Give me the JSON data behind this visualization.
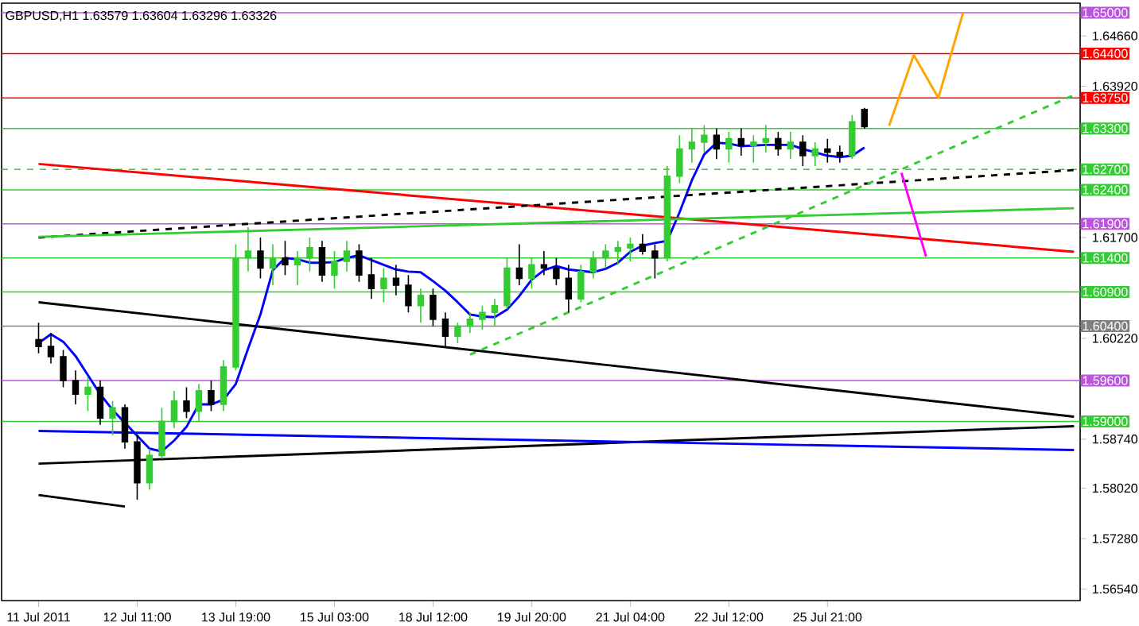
{
  "chart_data": {
    "type": "candlestick",
    "title": "GBPUSD,H1 1.63579 1.63604 1.63296 1.63326",
    "categories": [
      "11 Jul 2011",
      null,
      null,
      null,
      null,
      null,
      null,
      null,
      "12 Jul 11:00",
      null,
      null,
      null,
      null,
      null,
      null,
      null,
      "13 Jul 19:00",
      null,
      null,
      null,
      null,
      null,
      null,
      null,
      "15 Jul 03:00",
      null,
      null,
      null,
      null,
      null,
      null,
      null,
      "18 Jul 12:00",
      null,
      null,
      null,
      null,
      null,
      null,
      null,
      "19 Jul 20:00",
      null,
      null,
      null,
      null,
      null,
      null,
      null,
      "21 Jul 04:00",
      null,
      null,
      null,
      null,
      null,
      null,
      null,
      "22 Jul 12:00",
      null,
      null,
      null,
      null,
      null,
      null,
      null,
      "25 Jul 21:00",
      null,
      null,
      null,
      null,
      null,
      null,
      null,
      null,
      null,
      null,
      null,
      null,
      null,
      null,
      null,
      null,
      null,
      null,
      null,
      null
    ],
    "ohlc": [
      [
        1.602,
        1.6045,
        1.6,
        1.601
      ],
      [
        1.601,
        1.603,
        1.5985,
        1.5995
      ],
      [
        1.5995,
        1.6005,
        1.595,
        1.596
      ],
      [
        1.596,
        1.5975,
        1.5925,
        1.594
      ],
      [
        1.594,
        1.5965,
        1.5915,
        1.595
      ],
      [
        1.595,
        1.596,
        1.5895,
        1.5905
      ],
      [
        1.5905,
        1.593,
        1.588,
        1.592
      ],
      [
        1.592,
        1.5925,
        1.586,
        1.587
      ],
      [
        1.587,
        1.588,
        1.5785,
        1.581
      ],
      [
        1.581,
        1.586,
        1.58,
        1.585
      ],
      [
        1.585,
        1.592,
        1.5845,
        1.59
      ],
      [
        1.59,
        1.5945,
        1.589,
        1.593
      ],
      [
        1.593,
        1.595,
        1.5905,
        1.5915
      ],
      [
        1.5915,
        1.5955,
        1.59,
        1.5945
      ],
      [
        1.5945,
        1.596,
        1.5915,
        1.5925
      ],
      [
        1.5925,
        1.599,
        1.5915,
        1.598
      ],
      [
        1.598,
        1.616,
        1.5975,
        1.614
      ],
      [
        1.614,
        1.6185,
        1.612,
        1.615
      ],
      [
        1.615,
        1.617,
        1.611,
        1.6125
      ],
      [
        1.6125,
        1.616,
        1.61,
        1.614
      ],
      [
        1.614,
        1.6165,
        1.6115,
        1.613
      ],
      [
        1.613,
        1.615,
        1.61,
        1.614
      ],
      [
        1.614,
        1.617,
        1.612,
        1.6155
      ],
      [
        1.6155,
        1.6165,
        1.6105,
        1.6115
      ],
      [
        1.6115,
        1.615,
        1.6095,
        1.6135
      ],
      [
        1.6135,
        1.6165,
        1.612,
        1.615
      ],
      [
        1.615,
        1.616,
        1.6105,
        1.6115
      ],
      [
        1.6115,
        1.614,
        1.608,
        1.6095
      ],
      [
        1.6095,
        1.6125,
        1.6075,
        1.611
      ],
      [
        1.611,
        1.613,
        1.6085,
        1.61
      ],
      [
        1.61,
        1.6115,
        1.606,
        1.607
      ],
      [
        1.607,
        1.6095,
        1.6045,
        1.6085
      ],
      [
        1.6085,
        1.6095,
        1.604,
        1.605
      ],
      [
        1.605,
        1.606,
        1.601,
        1.6025
      ],
      [
        1.6025,
        1.6045,
        1.6015,
        1.604
      ],
      [
        1.604,
        1.606,
        1.603,
        1.605
      ],
      [
        1.605,
        1.607,
        1.6035,
        1.606
      ],
      [
        1.606,
        1.608,
        1.604,
        1.607
      ],
      [
        1.607,
        1.614,
        1.6065,
        1.6125
      ],
      [
        1.6125,
        1.616,
        1.61,
        1.611
      ],
      [
        1.611,
        1.614,
        1.6095,
        1.613
      ],
      [
        1.613,
        1.615,
        1.6115,
        1.6125
      ],
      [
        1.6125,
        1.614,
        1.61,
        1.611
      ],
      [
        1.611,
        1.613,
        1.606,
        1.608
      ],
      [
        1.608,
        1.613,
        1.6075,
        1.612
      ],
      [
        1.612,
        1.615,
        1.611,
        1.614
      ],
      [
        1.614,
        1.616,
        1.6125,
        1.615
      ],
      [
        1.615,
        1.6165,
        1.613,
        1.6155
      ],
      [
        1.6155,
        1.617,
        1.6135,
        1.616
      ],
      [
        1.616,
        1.6175,
        1.6145,
        1.615
      ],
      [
        1.615,
        1.616,
        1.611,
        1.614
      ],
      [
        1.614,
        1.6275,
        1.6135,
        1.626
      ],
      [
        1.626,
        1.632,
        1.625,
        1.63
      ],
      [
        1.63,
        1.633,
        1.628,
        1.631
      ],
      [
        1.631,
        1.6335,
        1.6295,
        1.632
      ],
      [
        1.632,
        1.633,
        1.6285,
        1.63
      ],
      [
        1.63,
        1.6325,
        1.628,
        1.6315
      ],
      [
        1.6315,
        1.633,
        1.629,
        1.6305
      ],
      [
        1.6305,
        1.632,
        1.628,
        1.631
      ],
      [
        1.631,
        1.6335,
        1.6295,
        1.6315
      ],
      [
        1.6315,
        1.6325,
        1.629,
        1.63
      ],
      [
        1.63,
        1.6325,
        1.6285,
        1.631
      ],
      [
        1.631,
        1.632,
        1.6275,
        1.629
      ],
      [
        1.629,
        1.631,
        1.6275,
        1.63
      ],
      [
        1.63,
        1.6315,
        1.628,
        1.6295
      ],
      [
        1.6295,
        1.6305,
        1.628,
        1.629
      ],
      [
        1.629,
        1.635,
        1.6285,
        1.634
      ],
      [
        1.63579,
        1.63604,
        1.63296,
        1.63326
      ],
      null,
      null,
      null,
      null,
      null,
      null,
      null,
      null,
      null,
      null,
      null,
      null,
      null,
      null,
      null,
      null,
      null
    ],
    "series": [
      {
        "type": "line",
        "color": "#0000ff",
        "values": [
          1.6015,
          1.6028,
          1.6017,
          1.5996,
          1.5968,
          1.594,
          1.5917,
          1.5898,
          1.5879,
          1.586,
          1.5856,
          1.5872,
          1.5892,
          1.5925,
          1.5925,
          1.5932,
          1.5955,
          1.6007,
          1.6057,
          1.6122,
          1.614,
          1.6138,
          1.6133,
          1.6133,
          1.6134,
          1.614,
          1.6144,
          1.6137,
          1.613,
          1.6123,
          1.612,
          1.6119,
          1.6106,
          1.6092,
          1.6075,
          1.6057,
          1.6054,
          1.6053,
          1.6064,
          1.6084,
          1.6108,
          1.6122,
          1.6128,
          1.6123,
          1.6121,
          1.6119,
          1.6124,
          1.6133,
          1.6149,
          1.6158,
          1.6162,
          1.6165,
          1.6207,
          1.6254,
          1.6292,
          1.6309,
          1.6308,
          1.6304,
          1.6305,
          1.6306,
          1.6306,
          1.6306,
          1.63,
          1.6295,
          1.629,
          1.6288,
          1.629,
          1.6302,
          null,
          null,
          null,
          null,
          null,
          null,
          null,
          null,
          null,
          null,
          null,
          null,
          null,
          null,
          null,
          null,
          null
        ]
      },
      {
        "type": "line",
        "color": "#ff0000",
        "values": [
          1.6278,
          null,
          null,
          null,
          null,
          null,
          null,
          null,
          null,
          null,
          null,
          null,
          null,
          null,
          null,
          null,
          null,
          null,
          null,
          null,
          null,
          null,
          null,
          null,
          null,
          null,
          null,
          null,
          null,
          null,
          null,
          null,
          null,
          null,
          null,
          null,
          null,
          null,
          null,
          null,
          null,
          null,
          null,
          null,
          null,
          null,
          null,
          null,
          null,
          null,
          null,
          null,
          null,
          null,
          null,
          null,
          null,
          null,
          null,
          null,
          null,
          null,
          null,
          null,
          null,
          null,
          null,
          null,
          null,
          null,
          null,
          null,
          null,
          null,
          null,
          null,
          null,
          null,
          null,
          null,
          null,
          null,
          null,
          null,
          1.6149
        ]
      },
      {
        "type": "line",
        "color": "#000000",
        "line_style": "dashed",
        "values": [
          1.617,
          null,
          null,
          null,
          null,
          null,
          null,
          null,
          null,
          null,
          null,
          null,
          null,
          null,
          null,
          null,
          null,
          null,
          null,
          null,
          null,
          null,
          null,
          null,
          null,
          null,
          null,
          null,
          null,
          null,
          null,
          null,
          null,
          null,
          null,
          null,
          null,
          null,
          null,
          null,
          null,
          null,
          null,
          null,
          null,
          null,
          null,
          null,
          null,
          null,
          null,
          null,
          null,
          null,
          null,
          null,
          null,
          null,
          null,
          null,
          null,
          null,
          null,
          null,
          null,
          null,
          null,
          null,
          null,
          null,
          null,
          null,
          null,
          null,
          null,
          null,
          null,
          null,
          null,
          null,
          null,
          null,
          null,
          null,
          1.6269
        ]
      },
      {
        "type": "line",
        "color": "#33cc33",
        "values": [
          1.6171,
          null,
          null,
          null,
          null,
          null,
          null,
          null,
          null,
          null,
          null,
          null,
          null,
          null,
          null,
          null,
          null,
          null,
          null,
          null,
          null,
          null,
          null,
          null,
          null,
          null,
          null,
          null,
          null,
          null,
          null,
          null,
          null,
          null,
          null,
          null,
          null,
          null,
          null,
          null,
          null,
          null,
          null,
          null,
          null,
          null,
          null,
          null,
          null,
          null,
          null,
          null,
          null,
          null,
          null,
          null,
          null,
          null,
          null,
          null,
          null,
          null,
          null,
          null,
          null,
          null,
          null,
          null,
          null,
          null,
          null,
          null,
          null,
          null,
          null,
          null,
          null,
          null,
          null,
          null,
          null,
          null,
          null,
          null,
          1.6213
        ]
      },
      {
        "type": "line",
        "color": "#33cc33",
        "line_style": "dashed",
        "values": [
          null,
          null,
          null,
          null,
          null,
          null,
          null,
          null,
          null,
          null,
          null,
          null,
          null,
          null,
          null,
          null,
          null,
          null,
          null,
          null,
          null,
          null,
          null,
          null,
          null,
          null,
          null,
          null,
          null,
          null,
          null,
          null,
          null,
          null,
          null,
          1.5998,
          null,
          null,
          null,
          null,
          null,
          null,
          null,
          null,
          null,
          null,
          null,
          null,
          null,
          null,
          null,
          null,
          null,
          null,
          null,
          null,
          null,
          null,
          null,
          null,
          null,
          null,
          null,
          null,
          null,
          null,
          null,
          null,
          null,
          null,
          null,
          null,
          null,
          null,
          null,
          null,
          null,
          null,
          null,
          null,
          null,
          null,
          null,
          null,
          1.6379
        ]
      },
      {
        "type": "line",
        "color": "#000000",
        "values": [
          1.6075,
          null,
          null,
          null,
          null,
          null,
          null,
          null,
          null,
          null,
          null,
          null,
          null,
          null,
          null,
          null,
          null,
          null,
          null,
          null,
          null,
          null,
          null,
          null,
          null,
          null,
          null,
          null,
          null,
          null,
          null,
          null,
          null,
          null,
          null,
          null,
          null,
          null,
          null,
          null,
          null,
          null,
          null,
          null,
          null,
          null,
          null,
          null,
          null,
          null,
          null,
          null,
          null,
          null,
          null,
          null,
          null,
          null,
          null,
          null,
          null,
          null,
          null,
          null,
          null,
          null,
          null,
          null,
          null,
          null,
          null,
          null,
          null,
          null,
          null,
          null,
          null,
          null,
          null,
          null,
          null,
          null,
          null,
          null,
          1.5907
        ]
      },
      {
        "type": "line",
        "color": "#000000",
        "values": [
          1.5792,
          null,
          null,
          null,
          null,
          null,
          null,
          1.5775,
          null,
          null,
          null,
          null,
          null,
          null,
          null,
          null,
          null,
          null,
          null,
          null,
          null,
          null,
          null,
          null,
          null,
          null,
          null,
          null,
          null,
          null,
          null,
          null,
          null,
          null,
          null,
          null,
          null,
          null,
          null,
          null,
          null,
          null,
          null,
          null,
          null,
          null,
          null,
          null,
          null,
          null,
          null,
          null,
          null,
          null,
          null,
          null,
          null,
          null,
          null,
          null,
          null,
          null,
          null,
          null,
          null,
          null,
          null,
          null,
          null,
          null,
          null,
          null,
          null,
          null,
          null,
          null,
          null,
          null,
          null,
          null,
          null,
          null,
          null,
          null,
          null
        ]
      },
      {
        "type": "line",
        "color": "#000000",
        "values": [
          1.5838,
          null,
          null,
          null,
          null,
          null,
          null,
          null,
          null,
          null,
          null,
          null,
          null,
          null,
          null,
          null,
          null,
          null,
          null,
          null,
          null,
          null,
          null,
          null,
          null,
          null,
          null,
          null,
          null,
          null,
          null,
          null,
          null,
          null,
          null,
          null,
          null,
          null,
          null,
          null,
          null,
          null,
          null,
          null,
          null,
          null,
          null,
          null,
          null,
          null,
          null,
          null,
          null,
          null,
          null,
          null,
          null,
          null,
          null,
          null,
          null,
          null,
          null,
          null,
          null,
          null,
          null,
          null,
          null,
          null,
          null,
          null,
          null,
          null,
          null,
          null,
          null,
          null,
          null,
          null,
          null,
          null,
          null,
          null,
          1.5893
        ]
      },
      {
        "type": "line",
        "color": "#0000ff",
        "values": [
          1.5886,
          null,
          null,
          null,
          null,
          null,
          null,
          null,
          null,
          null,
          null,
          null,
          null,
          null,
          null,
          null,
          null,
          null,
          null,
          null,
          null,
          null,
          null,
          null,
          null,
          null,
          null,
          null,
          null,
          null,
          null,
          null,
          null,
          null,
          null,
          null,
          null,
          null,
          null,
          null,
          null,
          null,
          null,
          null,
          null,
          null,
          null,
          null,
          null,
          null,
          null,
          null,
          null,
          null,
          null,
          null,
          null,
          null,
          null,
          null,
          null,
          null,
          null,
          null,
          null,
          null,
          null,
          null,
          null,
          null,
          null,
          null,
          null,
          null,
          null,
          null,
          null,
          null,
          null,
          null,
          null,
          null,
          null,
          null,
          1.5858
        ]
      },
      {
        "type": "line",
        "color": "#ffa500",
        "values": [
          null,
          null,
          null,
          null,
          null,
          null,
          null,
          null,
          null,
          null,
          null,
          null,
          null,
          null,
          null,
          null,
          null,
          null,
          null,
          null,
          null,
          null,
          null,
          null,
          null,
          null,
          null,
          null,
          null,
          null,
          null,
          null,
          null,
          null,
          null,
          null,
          null,
          null,
          null,
          null,
          null,
          null,
          null,
          null,
          null,
          null,
          null,
          null,
          null,
          null,
          null,
          null,
          null,
          null,
          null,
          null,
          null,
          null,
          null,
          null,
          null,
          null,
          null,
          null,
          null,
          null,
          null,
          null,
          null,
          1.6334,
          null,
          1.6438,
          null,
          1.6375,
          null,
          1.65,
          null,
          null,
          null,
          null,
          null,
          null,
          null,
          null,
          null
        ]
      },
      {
        "type": "line",
        "color": "#ff00ff",
        "values": [
          null,
          null,
          null,
          null,
          null,
          null,
          null,
          null,
          null,
          null,
          null,
          null,
          null,
          null,
          null,
          null,
          null,
          null,
          null,
          null,
          null,
          null,
          null,
          null,
          null,
          null,
          null,
          null,
          null,
          null,
          null,
          null,
          null,
          null,
          null,
          null,
          null,
          null,
          null,
          null,
          null,
          null,
          null,
          null,
          null,
          null,
          null,
          null,
          null,
          null,
          null,
          null,
          null,
          null,
          null,
          null,
          null,
          null,
          null,
          null,
          null,
          null,
          null,
          null,
          null,
          null,
          null,
          null,
          null,
          null,
          1.6265,
          null,
          1.6142,
          null,
          null,
          null,
          null,
          null,
          null,
          null,
          null,
          null,
          null,
          null,
          null
        ]
      }
    ],
    "ref_lines": [
      {
        "axis": "y",
        "value": 1.65,
        "label": "1.65000",
        "color": "#bb55dd"
      },
      {
        "axis": "y",
        "value": 1.644,
        "label": "1.64400",
        "color": "#ff0000"
      },
      {
        "axis": "y",
        "value": 1.6375,
        "label": "1.63750",
        "color": "#ff0000"
      },
      {
        "axis": "y",
        "value": 1.633,
        "label": "1.63300",
        "color": "#33cc33"
      },
      {
        "axis": "y",
        "value": 1.627,
        "label": "1.62700",
        "color": "#33cc33",
        "line_style": "dashed"
      },
      {
        "axis": "y",
        "value": 1.624,
        "label": "1.62400",
        "color": "#33cc33"
      },
      {
        "axis": "y",
        "value": 1.619,
        "label": "1.61900",
        "color": "#bb55dd"
      },
      {
        "axis": "y",
        "value": 1.614,
        "label": "1.61400",
        "color": "#33cc33"
      },
      {
        "axis": "y",
        "value": 1.609,
        "label": "1.60900",
        "color": "#33cc33"
      },
      {
        "axis": "y",
        "value": 1.604,
        "label": "1.60400",
        "color": "#808080"
      },
      {
        "axis": "y",
        "value": 1.596,
        "label": "1.59600",
        "color": "#bb55dd"
      },
      {
        "axis": "y",
        "value": 1.59,
        "label": "1.59000",
        "color": "#33cc33"
      }
    ],
    "ylim": [
      1.5637,
      1.6514
    ],
    "yticks": [
      {
        "value": 1.5654,
        "label": "1.56540"
      },
      {
        "value": 1.5728,
        "label": "1.57280"
      },
      {
        "value": 1.5802,
        "label": "1.58020"
      },
      {
        "value": 1.5874,
        "label": "1.58740"
      },
      {
        "value": 1.6022,
        "label": "1.60220"
      },
      {
        "value": 1.617,
        "label": "1.61700"
      },
      {
        "value": 1.6392,
        "label": "1.63920"
      },
      {
        "value": 1.6466,
        "label": "1.64660"
      }
    ]
  }
}
